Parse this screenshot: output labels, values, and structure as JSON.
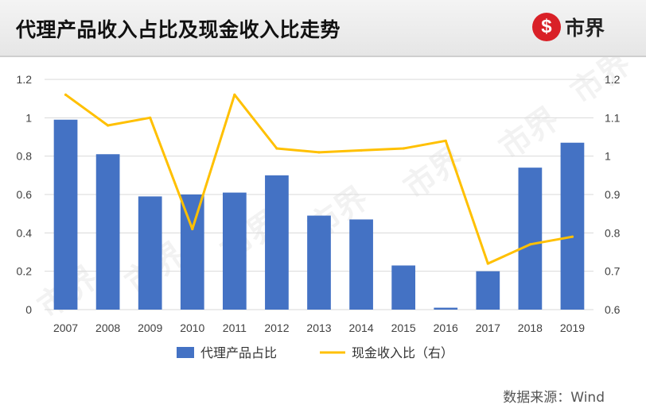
{
  "header": {
    "title": "代理产品收入占比及现金收入比走势",
    "logo_text": "市界",
    "logo_mark": "$"
  },
  "source": "数据来源：Wind",
  "watermark": "市界",
  "colors": {
    "bar": "#4472C4",
    "line": "#FFC000",
    "grid": "#D9D9D9",
    "axis_text": "#404040",
    "brand_red": "#D92027"
  },
  "chart_data": {
    "type": "bar",
    "categories": [
      "2007",
      "2008",
      "2009",
      "2010",
      "2011",
      "2012",
      "2013",
      "2014",
      "2015",
      "2016",
      "2017",
      "2018",
      "2019"
    ],
    "series": [
      {
        "name": "代理产品占比",
        "type": "bar",
        "axis": "left",
        "values": [
          0.99,
          0.81,
          0.59,
          0.6,
          0.61,
          0.7,
          0.49,
          0.47,
          0.23,
          0.01,
          0.2,
          0.74,
          0.87
        ]
      },
      {
        "name": "现金收入比（右）",
        "type": "line",
        "axis": "right",
        "values": [
          1.16,
          1.08,
          1.1,
          0.81,
          1.16,
          1.02,
          1.01,
          1.015,
          1.02,
          1.04,
          0.72,
          0.77,
          0.79
        ]
      }
    ],
    "y_left": {
      "min": 0,
      "max": 1.2,
      "ticks": [
        "0",
        "0.2",
        "0.4",
        "0.6",
        "0.8",
        "1",
        "1.2"
      ]
    },
    "y_right": {
      "min": 0.6,
      "max": 1.2,
      "ticks": [
        "0.6",
        "0.7",
        "0.8",
        "0.9",
        "1",
        "1.1",
        "1.2"
      ]
    },
    "grid": true,
    "legend_position": "bottom"
  }
}
